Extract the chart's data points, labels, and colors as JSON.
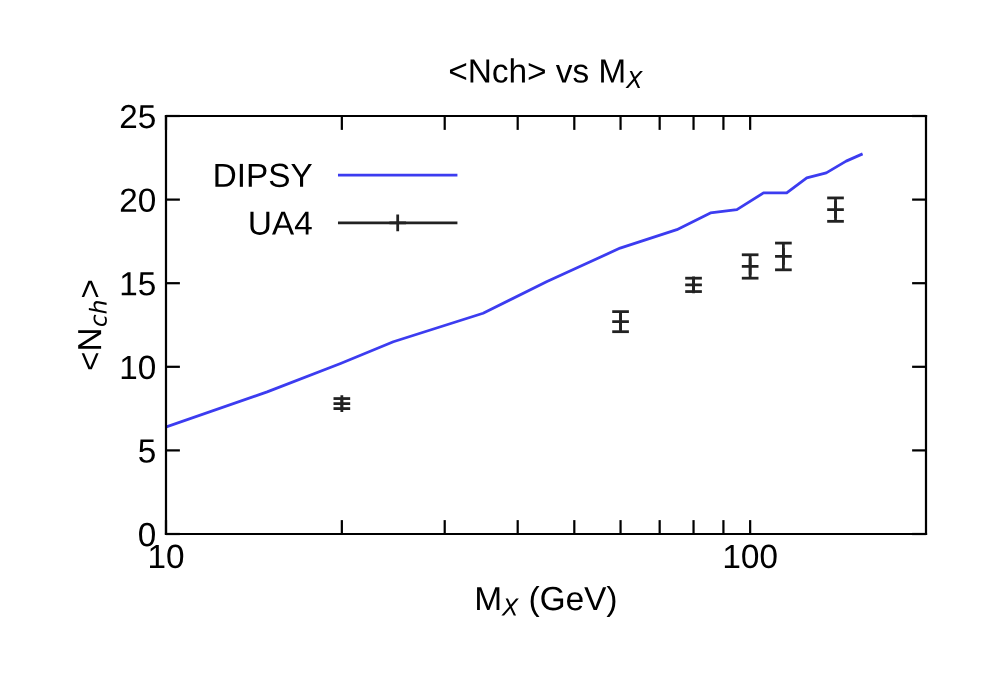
{
  "chart_data": {
    "type": "line",
    "title": "<Nch> vs M$_{X}$",
    "xlabel": "M$_{X}$ (GeV)",
    "ylabel": "<N$_{ch}$>",
    "log": "x",
    "xlim": [
      10,
      200
    ],
    "ylim": [
      0,
      25
    ],
    "xticks": [
      10,
      {
        "value": 20,
        "label": null
      },
      {
        "value": 30,
        "label": null
      },
      {
        "value": 40,
        "label": null
      },
      {
        "value": 50,
        "label": null
      },
      {
        "value": 60,
        "label": null
      },
      {
        "value": 70,
        "label": null
      },
      {
        "value": 80,
        "label": null
      },
      {
        "value": 90,
        "label": null
      },
      100
    ],
    "yticks": [
      0,
      5,
      10,
      15,
      20,
      25
    ],
    "legend": "top left",
    "grid": false,
    "series": [
      {
        "name": "DIPSY",
        "color": "#3c3cf0",
        "line_style": "solid",
        "x": [
          10,
          14.9,
          19.9,
          24.5,
          34.9,
          44.9,
          59.9,
          74.9,
          85.5,
          94.9,
          105.4,
          115.5,
          125,
          135,
          146,
          155
        ],
        "values": [
          6.4,
          8.5,
          10.2,
          11.5,
          13.2,
          15.1,
          17.1,
          18.2,
          19.2,
          19.4,
          20.4,
          20.4,
          21.3,
          21.6,
          22.3,
          22.7
        ]
      },
      {
        "name": "UA4",
        "type": "scatter",
        "color": "#222222",
        "marker": "cross",
        "x": [
          20,
          60,
          80,
          100,
          114,
          140
        ],
        "values": [
          7.8,
          12.7,
          14.9,
          16.0,
          16.6,
          19.4
        ],
        "errors": [
          0.3,
          0.6,
          0.4,
          0.7,
          0.8,
          0.7
        ]
      }
    ]
  }
}
